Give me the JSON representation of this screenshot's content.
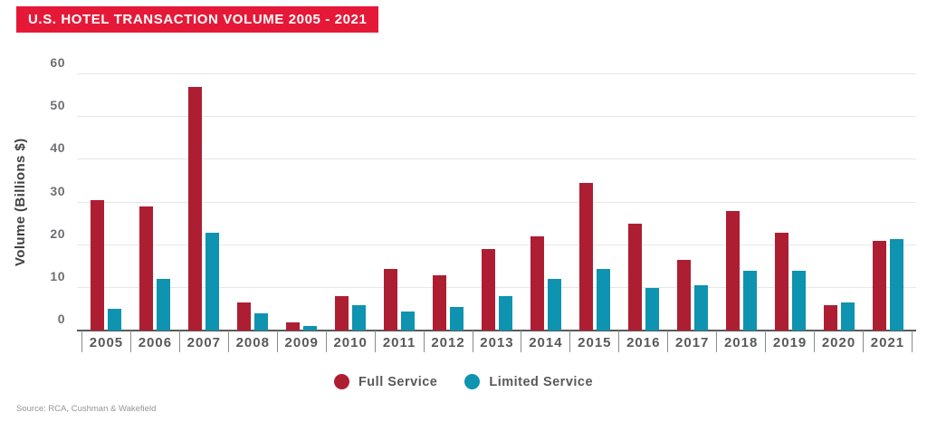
{
  "source": "Source: RCA, Cushman & Wakefield",
  "colors": {
    "banner": "#E51937",
    "full_service": "#AE1E32",
    "limited_service": "#0E93B0",
    "grid": "#E7E7E7",
    "axis": "#58595B"
  },
  "legend": {
    "items": [
      {
        "label": "Full Service",
        "color": "#AE1E32"
      },
      {
        "label": "Limited Service",
        "color": "#0E93B0"
      }
    ]
  },
  "chart_data": {
    "type": "bar",
    "title": "U.S. HOTEL TRANSACTION VOLUME 2005 - 2021",
    "xlabel": "",
    "ylabel": "Volume (Billions $)",
    "ylim": [
      0,
      60
    ],
    "yticks": [
      0,
      10,
      20,
      30,
      40,
      50,
      60
    ],
    "grid": true,
    "legend_position": "bottom",
    "categories": [
      "2005",
      "2006",
      "2007",
      "2008",
      "2009",
      "2010",
      "2011",
      "2012",
      "2013",
      "2014",
      "2015",
      "2016",
      "2017",
      "2018",
      "2019",
      "2020",
      "2021"
    ],
    "series": [
      {
        "name": "Full Service",
        "color": "#AE1E32",
        "values": [
          30.5,
          29,
          57,
          6.5,
          2,
          8,
          14.5,
          13,
          19,
          22,
          34.5,
          25,
          16.5,
          28,
          23,
          6,
          21
        ]
      },
      {
        "name": "Limited Service",
        "color": "#0E93B0",
        "values": [
          5,
          12,
          23,
          4,
          1,
          6,
          4.5,
          5.5,
          8,
          12,
          14.5,
          10,
          10.5,
          14,
          14,
          6.5,
          21.5
        ]
      }
    ]
  }
}
